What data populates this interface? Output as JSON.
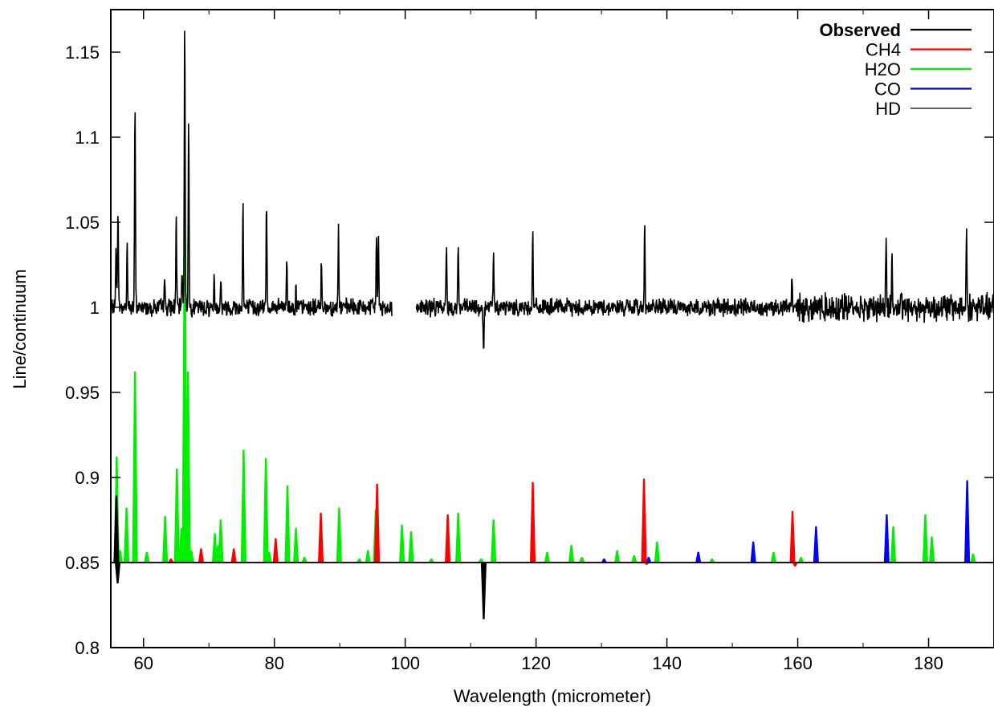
{
  "chart_data": {
    "type": "line",
    "xlabel": "Wavelength (micrometer)",
    "ylabel": "Line/continuum",
    "xlim": [
      55,
      190
    ],
    "ylim": [
      0.8,
      1.175
    ],
    "x_ticks": [
      60,
      80,
      100,
      120,
      140,
      160,
      180
    ],
    "y_ticks": [
      0.8,
      0.85,
      0.9,
      0.95,
      1,
      1.05,
      1.1,
      1.15
    ],
    "x_tick_labels": [
      "60",
      "80",
      "100",
      "120",
      "140",
      "160",
      "180"
    ],
    "y_tick_labels": [
      "0.8",
      "0.85",
      "0.9",
      "0.95",
      "1",
      "1.05",
      "1.1",
      "1.15"
    ],
    "grid": false,
    "legend_position": "top-right",
    "series": [
      {
        "name": "Observed",
        "color": "#000000",
        "kind": "noisy_spectrum",
        "baseline": 1.0,
        "noise_amplitude": 0.004,
        "segments": [
          [
            55,
            98
          ],
          [
            101.7,
            190
          ]
        ],
        "features": [
          [
            55.8,
            1.039
          ],
          [
            56.1,
            1.061
          ],
          [
            57.5,
            1.038
          ],
          [
            58.7,
            1.121
          ],
          [
            63.2,
            1.02
          ],
          [
            65.0,
            1.054
          ],
          [
            65.9,
            1.025
          ],
          [
            66.3,
            1.173
          ],
          [
            66.9,
            1.109
          ],
          [
            70.8,
            1.016
          ],
          [
            71.8,
            1.017
          ],
          [
            75.2,
            1.062
          ],
          [
            78.8,
            1.062
          ],
          [
            81.9,
            1.03
          ],
          [
            83.3,
            1.013
          ],
          [
            87.2,
            1.03
          ],
          [
            89.8,
            1.046
          ],
          [
            95.6,
            1.043
          ],
          [
            95.9,
            1.04
          ],
          [
            106.3,
            1.036
          ],
          [
            108.1,
            1.038
          ],
          [
            112.0,
            0.97
          ],
          [
            113.5,
            1.031
          ],
          [
            119.5,
            1.045
          ],
          [
            136.6,
            1.053
          ],
          [
            159.1,
            1.018
          ],
          [
            173.5,
            1.04
          ],
          [
            174.4,
            1.03
          ],
          [
            185.8,
            1.046
          ]
        ]
      },
      {
        "name": "CH4",
        "color": "#ff0000",
        "kind": "lines",
        "baseline": 0.85,
        "lines": [
          [
            64.2,
            0.852
          ],
          [
            68.8,
            0.858
          ],
          [
            73.8,
            0.858
          ],
          [
            80.2,
            0.864
          ],
          [
            87.1,
            0.879
          ],
          [
            95.7,
            0.896
          ],
          [
            106.5,
            0.878
          ],
          [
            119.5,
            0.897
          ],
          [
            136.5,
            0.899
          ],
          [
            136.9,
            0.849
          ],
          [
            159.2,
            0.88
          ],
          [
            159.6,
            0.848
          ]
        ]
      },
      {
        "name": "H2O",
        "color": "#00ee00",
        "kind": "lines",
        "baseline": 0.85,
        "lines": [
          [
            55.9,
            0.912
          ],
          [
            56.4,
            0.857
          ],
          [
            57.4,
            0.882
          ],
          [
            58.7,
            0.962
          ],
          [
            60.5,
            0.856
          ],
          [
            63.3,
            0.877
          ],
          [
            65.1,
            0.905
          ],
          [
            65.8,
            0.87
          ],
          [
            66.3,
            1.053
          ],
          [
            66.8,
            0.962
          ],
          [
            67.3,
            0.857
          ],
          [
            70.9,
            0.867
          ],
          [
            71.4,
            0.86
          ],
          [
            71.8,
            0.875
          ],
          [
            75.3,
            0.916
          ],
          [
            78.7,
            0.911
          ],
          [
            79.2,
            0.856
          ],
          [
            82.0,
            0.895
          ],
          [
            83.3,
            0.87
          ],
          [
            84.6,
            0.853
          ],
          [
            89.9,
            0.882
          ],
          [
            93.0,
            0.852
          ],
          [
            94.3,
            0.857
          ],
          [
            95.5,
            0.881
          ],
          [
            99.5,
            0.872
          ],
          [
            100.9,
            0.868
          ],
          [
            104.0,
            0.852
          ],
          [
            108.1,
            0.879
          ],
          [
            111.6,
            0.852
          ],
          [
            113.5,
            0.875
          ],
          [
            121.7,
            0.856
          ],
          [
            125.4,
            0.86
          ],
          [
            127.0,
            0.853
          ],
          [
            132.4,
            0.857
          ],
          [
            135.0,
            0.854
          ],
          [
            138.5,
            0.862
          ],
          [
            146.9,
            0.852
          ],
          [
            156.3,
            0.856
          ],
          [
            160.5,
            0.853
          ],
          [
            174.6,
            0.871
          ],
          [
            179.5,
            0.878
          ],
          [
            180.5,
            0.865
          ],
          [
            186.8,
            0.855
          ]
        ]
      },
      {
        "name": "CO",
        "color": "#0000ff",
        "kind": "lines",
        "baseline": 0.85,
        "lines": [
          [
            130.4,
            0.852
          ],
          [
            137.2,
            0.853
          ],
          [
            144.8,
            0.856
          ],
          [
            153.2,
            0.862
          ],
          [
            162.8,
            0.871
          ],
          [
            173.6,
            0.878
          ],
          [
            185.9,
            0.898
          ]
        ]
      },
      {
        "name": "HD",
        "color": "#000000",
        "kind": "lines",
        "baseline": 0.85,
        "lines": [
          [
            55.85,
            0.889
          ],
          [
            56.05,
            0.838
          ],
          [
            112.0,
            0.817
          ]
        ]
      }
    ]
  }
}
